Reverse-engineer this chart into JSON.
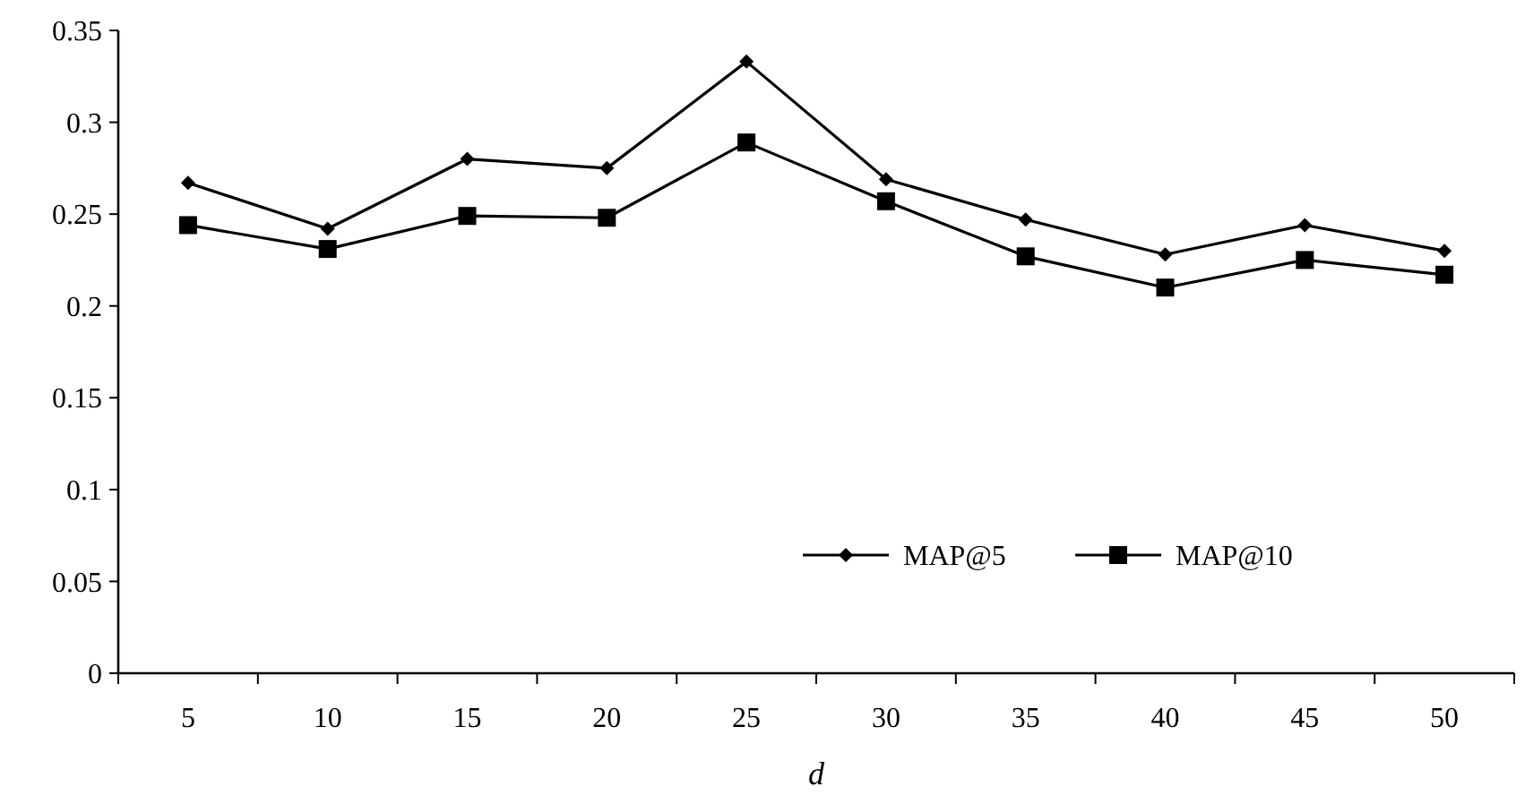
{
  "chart_data": {
    "type": "line",
    "xlabel": "d",
    "categories": [
      "5",
      "10",
      "15",
      "20",
      "25",
      "30",
      "35",
      "40",
      "45",
      "50"
    ],
    "series": [
      {
        "name": "MAP@5",
        "color": "#000000",
        "marker": "diamond",
        "values": [
          0.267,
          0.242,
          0.28,
          0.275,
          0.333,
          0.269,
          0.247,
          0.228,
          0.244,
          0.23
        ]
      },
      {
        "name": "MAP@10",
        "color": "#000000",
        "marker": "square",
        "values": [
          0.244,
          0.231,
          0.249,
          0.248,
          0.289,
          0.257,
          0.227,
          0.21,
          0.225,
          0.217
        ]
      }
    ],
    "ylim": [
      0,
      0.35
    ],
    "yticks": [
      0,
      0.05,
      0.1,
      0.15,
      0.2,
      0.25,
      0.3,
      0.35
    ],
    "grid": false,
    "legend": "bottom right",
    "line_style": "solid"
  }
}
